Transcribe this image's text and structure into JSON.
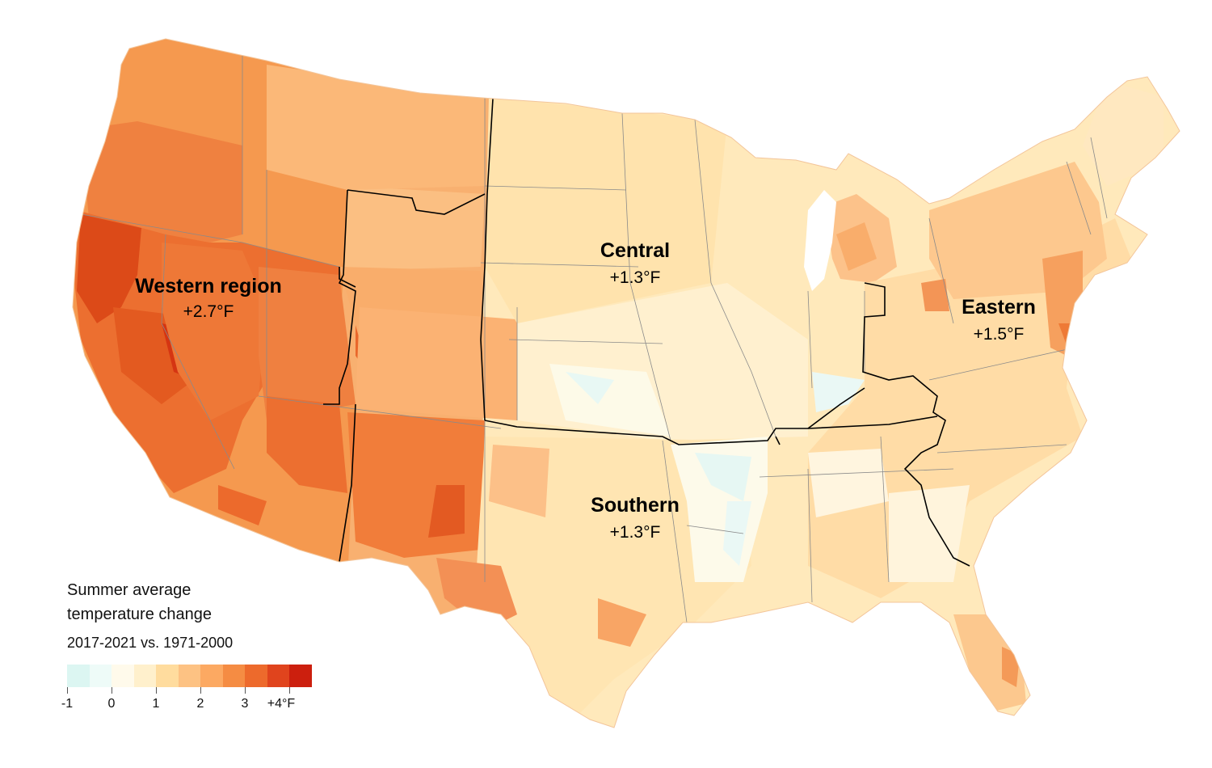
{
  "regions": [
    {
      "name": "Western region",
      "value": "+2.7°F"
    },
    {
      "name": "Central",
      "value": "+1.3°F"
    },
    {
      "name": "Eastern",
      "value": "+1.5°F"
    },
    {
      "name": "Southern",
      "value": "+1.3°F"
    }
  ],
  "legend": {
    "title_line1": "Summer average",
    "title_line2": "temperature change",
    "title_line3": "2017-2021 vs. 1971-2000",
    "ticks": [
      "-1",
      "0",
      "1",
      "2",
      "3",
      "+4°F"
    ],
    "colors": [
      "#dcf6f2",
      "#eefbf8",
      "#fffaeb",
      "#fff0cc",
      "#ffdc9e",
      "#fdc283",
      "#fca962",
      "#f58c43",
      "#ed6a2c",
      "#e0441d",
      "#cc1f0e"
    ]
  },
  "colors": {
    "west_dark": "#e2561f",
    "west_mid": "#f17c3b",
    "west_light": "#f6a060",
    "central": "#ffe9bb",
    "south": "#ffe3ad",
    "east": "#fdc98d",
    "cool": "#e8f8f4",
    "border": "#000000"
  }
}
